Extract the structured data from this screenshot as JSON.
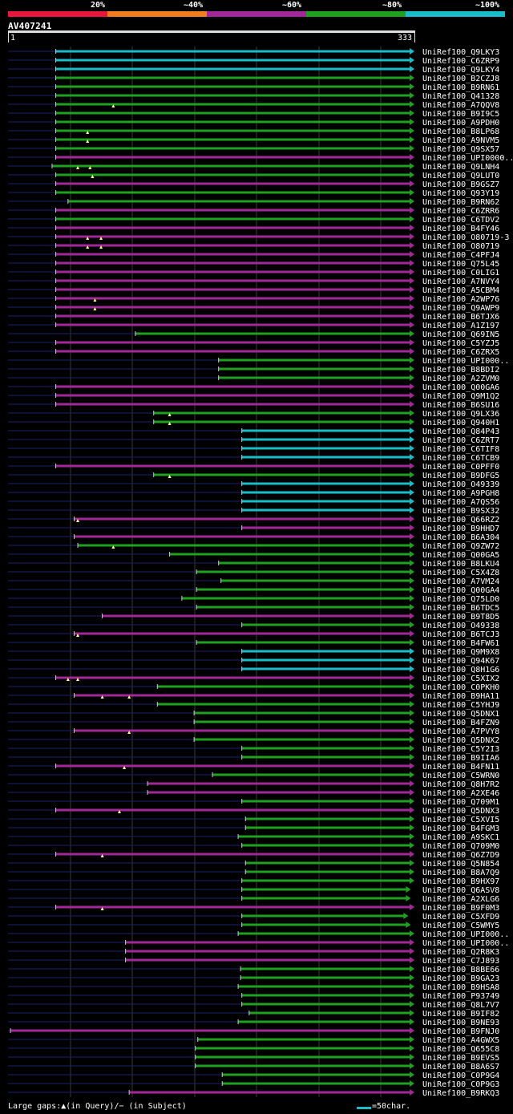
{
  "legend": {
    "colors": [
      "#e8183a",
      "#f07c1e",
      "#a2289a",
      "#1fa01f",
      "#19bcc9"
    ],
    "labels": [
      "20%",
      "~40%",
      "~60%",
      "~80%",
      "~100%"
    ]
  },
  "query": {
    "name": "AV407241",
    "start": "1",
    "end": "333"
  },
  "footer": {
    "gaps_text": "Large gaps:▲(in Query)/− (in Subject)",
    "scale_text": "=50char.",
    "scale_color": "#19bcc9"
  },
  "chart_data": {
    "type": "alignment",
    "query_length": 333,
    "colors": {
      "purple": "#a2289a",
      "green": "#1fa01f",
      "cyan": "#19bcc9",
      "dark": "#1a1f6e"
    },
    "hits": [
      {
        "name": "UniRef100_Q9LKY3",
        "start": 40,
        "color": "cyan"
      },
      {
        "name": "UniRef100_C6ZRP9",
        "start": 40,
        "color": "cyan"
      },
      {
        "name": "UniRef100_Q9LKY4",
        "start": 40,
        "color": "cyan"
      },
      {
        "name": "UniRef100_B2CZJ8",
        "start": 40,
        "color": "green"
      },
      {
        "name": "UniRef100_B9RN61",
        "start": 40,
        "color": "green"
      },
      {
        "name": "UniRef100_Q41328",
        "start": 40,
        "color": "green"
      },
      {
        "name": "UniRef100_A7QQV8",
        "start": 40,
        "color": "green",
        "gaps": [
          87
        ]
      },
      {
        "name": "UniRef100_B9I9C5",
        "start": 40,
        "color": "green"
      },
      {
        "name": "UniRef100_A9PDH0",
        "start": 40,
        "color": "green"
      },
      {
        "name": "UniRef100_B8LP68",
        "start": 40,
        "color": "green",
        "gaps": [
          66
        ]
      },
      {
        "name": "UniRef100_A9NVM5",
        "start": 40,
        "color": "green",
        "gaps": [
          66
        ]
      },
      {
        "name": "UniRef100_Q9SX57",
        "start": 40,
        "color": "green"
      },
      {
        "name": "UniRef100_UPI0000..",
        "start": 40,
        "color": "purple"
      },
      {
        "name": "UniRef100_Q9LNH4",
        "start": 37,
        "color": "green",
        "gaps": [
          58,
          68
        ]
      },
      {
        "name": "UniRef100_Q9LUT0",
        "start": 40,
        "color": "green",
        "gaps": [
          70
        ]
      },
      {
        "name": "UniRef100_B9GSZ7",
        "start": 40,
        "color": "purple"
      },
      {
        "name": "UniRef100_Q93Y19",
        "start": 40,
        "color": "green"
      },
      {
        "name": "UniRef100_B9RN62",
        "start": 50,
        "color": "green"
      },
      {
        "name": "UniRef100_C6ZRR6",
        "start": 40,
        "color": "purple"
      },
      {
        "name": "UniRef100_C6TDV2",
        "start": 40,
        "color": "green"
      },
      {
        "name": "UniRef100_B4FY46",
        "start": 40,
        "color": "purple"
      },
      {
        "name": "UniRef100_O80719-3",
        "start": 40,
        "color": "purple",
        "gaps": [
          66,
          77
        ]
      },
      {
        "name": "UniRef100_O80719",
        "start": 40,
        "color": "purple",
        "gaps": [
          66,
          77
        ]
      },
      {
        "name": "UniRef100_C4PFJ4",
        "start": 40,
        "color": "purple"
      },
      {
        "name": "UniRef100_Q75L45",
        "start": 40,
        "color": "purple"
      },
      {
        "name": "UniRef100_C0LIG1",
        "start": 40,
        "color": "purple"
      },
      {
        "name": "UniRef100_A7NVY4",
        "start": 40,
        "color": "purple"
      },
      {
        "name": "UniRef100_A5CBM4",
        "start": 40,
        "color": "purple"
      },
      {
        "name": "UniRef100_A2WP76",
        "start": 40,
        "color": "purple",
        "gaps": [
          72
        ]
      },
      {
        "name": "UniRef100_Q9AWP9",
        "start": 40,
        "color": "purple",
        "gaps": [
          72
        ]
      },
      {
        "name": "UniRef100_B6TJX6",
        "start": 40,
        "color": "purple"
      },
      {
        "name": "UniRef100_A1Z197",
        "start": 40,
        "color": "purple"
      },
      {
        "name": "UniRef100_Q69IN5",
        "start": 105,
        "color": "green"
      },
      {
        "name": "UniRef100_C5YZJ5",
        "start": 40,
        "color": "purple"
      },
      {
        "name": "UniRef100_C6ZRX5",
        "start": 40,
        "color": "purple"
      },
      {
        "name": "UniRef100_UPI000..",
        "start": 173,
        "color": "green"
      },
      {
        "name": "UniRef100_B8BDI2",
        "start": 173,
        "color": "green"
      },
      {
        "name": "UniRef100_A2ZVM0",
        "start": 173,
        "color": "green"
      },
      {
        "name": "UniRef100_Q00GA6",
        "start": 40,
        "color": "purple"
      },
      {
        "name": "UniRef100_Q9M1Q2",
        "start": 40,
        "color": "purple"
      },
      {
        "name": "UniRef100_B6SU16",
        "start": 40,
        "color": "purple"
      },
      {
        "name": "UniRef100_Q9LX36",
        "start": 120,
        "color": "green",
        "gaps": [
          133
        ]
      },
      {
        "name": "UniRef100_Q940H1",
        "start": 120,
        "color": "green",
        "gaps": [
          133
        ]
      },
      {
        "name": "UniRef100_Q84P43",
        "start": 192,
        "color": "cyan"
      },
      {
        "name": "UniRef100_C6ZRT7",
        "start": 192,
        "color": "cyan"
      },
      {
        "name": "UniRef100_C6TIF8",
        "start": 192,
        "color": "cyan"
      },
      {
        "name": "UniRef100_C6TCB9",
        "start": 192,
        "color": "cyan"
      },
      {
        "name": "UniRef100_C0PFF0",
        "start": 40,
        "color": "purple"
      },
      {
        "name": "UniRef100_B9DFG5",
        "start": 120,
        "color": "green",
        "gaps": [
          133
        ]
      },
      {
        "name": "UniRef100_O49339",
        "start": 192,
        "color": "cyan"
      },
      {
        "name": "UniRef100_A9PGH8",
        "start": 192,
        "color": "cyan"
      },
      {
        "name": "UniRef100_A7QS56",
        "start": 192,
        "color": "cyan"
      },
      {
        "name": "UniRef100_B9SX32",
        "start": 192,
        "color": "cyan"
      },
      {
        "name": "UniRef100_Q66RZ2",
        "start": 55,
        "color": "purple",
        "gaps": [
          58
        ]
      },
      {
        "name": "UniRef100_B9HHD7",
        "start": 192,
        "color": "purple"
      },
      {
        "name": "UniRef100_B6A304",
        "start": 55,
        "color": "purple"
      },
      {
        "name": "UniRef100_Q9ZW72",
        "start": 58,
        "color": "green",
        "gaps": [
          87
        ]
      },
      {
        "name": "UniRef100_Q00GA5",
        "start": 133,
        "color": "green"
      },
      {
        "name": "UniRef100_B8LKU4",
        "start": 173,
        "color": "green"
      },
      {
        "name": "UniRef100_C5X4Z8",
        "start": 155,
        "color": "green"
      },
      {
        "name": "UniRef100_A7VM24",
        "start": 175,
        "color": "green"
      },
      {
        "name": "UniRef100_Q00GA4",
        "start": 155,
        "color": "green"
      },
      {
        "name": "UniRef100_Q75LD0",
        "start": 143,
        "color": "green"
      },
      {
        "name": "UniRef100_B6TDC5",
        "start": 155,
        "color": "green"
      },
      {
        "name": "UniRef100_B9T8D5",
        "start": 78,
        "color": "purple"
      },
      {
        "name": "UniRef100_O49338",
        "start": 192,
        "color": "green"
      },
      {
        "name": "UniRef100_B6TCJ3",
        "start": 55,
        "color": "purple",
        "gaps": [
          58
        ]
      },
      {
        "name": "UniRef100_B4FW61",
        "start": 155,
        "color": "green"
      },
      {
        "name": "UniRef100_Q9M9X8",
        "start": 192,
        "color": "cyan"
      },
      {
        "name": "UniRef100_Q94K67",
        "start": 192,
        "color": "cyan"
      },
      {
        "name": "UniRef100_Q8H1G6",
        "start": 192,
        "color": "cyan"
      },
      {
        "name": "UniRef100_C5XIX2",
        "start": 40,
        "color": "purple",
        "gaps": [
          50,
          58
        ]
      },
      {
        "name": "UniRef100_C0PKH0",
        "start": 123,
        "color": "green"
      },
      {
        "name": "UniRef100_B9HA11",
        "start": 55,
        "color": "purple",
        "gaps": [
          78,
          100
        ]
      },
      {
        "name": "UniRef100_C5YHJ9",
        "start": 123,
        "color": "green"
      },
      {
        "name": "UniRef100_Q5DNX1",
        "start": 153,
        "color": "green"
      },
      {
        "name": "UniRef100_B4FZN9",
        "start": 153,
        "color": "green"
      },
      {
        "name": "UniRef100_A7PVY8",
        "start": 55,
        "color": "purple",
        "gaps": [
          100
        ]
      },
      {
        "name": "UniRef100_Q5DNX2",
        "start": 153,
        "color": "green"
      },
      {
        "name": "UniRef100_C5Y2I3",
        "start": 192,
        "color": "green"
      },
      {
        "name": "UniRef100_B9IIA6",
        "start": 192,
        "color": "green"
      },
      {
        "name": "UniRef100_B4FN11",
        "start": 40,
        "color": "purple",
        "gaps": [
          96
        ]
      },
      {
        "name": "UniRef100_C5WRN0",
        "start": 168,
        "color": "green"
      },
      {
        "name": "UniRef100_Q8H7R2",
        "start": 115,
        "color": "purple"
      },
      {
        "name": "UniRef100_A2XE46",
        "start": 115,
        "color": "purple"
      },
      {
        "name": "UniRef100_Q709M1",
        "start": 192,
        "color": "green"
      },
      {
        "name": "UniRef100_Q5DNX3",
        "start": 40,
        "color": "purple",
        "gaps": [
          92
        ]
      },
      {
        "name": "UniRef100_C5XVI5",
        "start": 195,
        "color": "green"
      },
      {
        "name": "UniRef100_B4FGM3",
        "start": 195,
        "color": "green"
      },
      {
        "name": "UniRef100_A9SKC1",
        "start": 189,
        "color": "green"
      },
      {
        "name": "UniRef100_Q709M0",
        "start": 192,
        "color": "green"
      },
      {
        "name": "UniRef100_Q6Z7D9",
        "start": 40,
        "color": "purple",
        "gaps": [
          78
        ]
      },
      {
        "name": "UniRef100_Q5N854",
        "start": 195,
        "color": "green"
      },
      {
        "name": "UniRef100_B8A7Q9",
        "start": 195,
        "color": "green"
      },
      {
        "name": "UniRef100_B9HX97",
        "start": 192,
        "color": "green"
      },
      {
        "name": "UniRef100_Q6ASV8",
        "start": 192,
        "end": 330,
        "color": "green"
      },
      {
        "name": "UniRef100_A2XLG6",
        "start": 192,
        "end": 330,
        "color": "green"
      },
      {
        "name": "UniRef100_B9F0M3",
        "start": 40,
        "color": "purple",
        "gaps": [
          78
        ]
      },
      {
        "name": "UniRef100_C5XFD9",
        "start": 192,
        "end": 328,
        "color": "green"
      },
      {
        "name": "UniRef100_C5WMY5",
        "start": 192,
        "end": 330,
        "color": "green"
      },
      {
        "name": "UniRef100_UPI000..",
        "start": 189,
        "color": "green"
      },
      {
        "name": "UniRef100_UPI000..",
        "start": 97,
        "color": "purple"
      },
      {
        "name": "UniRef100_Q2R8K3",
        "start": 97,
        "color": "purple"
      },
      {
        "name": "UniRef100_C7J893",
        "start": 97,
        "color": "purple"
      },
      {
        "name": "UniRef100_B8BE66",
        "start": 191,
        "color": "green"
      },
      {
        "name": "UniRef100_B9GA23",
        "start": 191,
        "color": "green"
      },
      {
        "name": "UniRef100_B9HSA8",
        "start": 189,
        "color": "green"
      },
      {
        "name": "UniRef100_P93749",
        "start": 192,
        "color": "green"
      },
      {
        "name": "UniRef100_Q8L7V7",
        "start": 192,
        "color": "green"
      },
      {
        "name": "UniRef100_B9IF82",
        "start": 198,
        "color": "green"
      },
      {
        "name": "UniRef100_B9NE93",
        "start": 189,
        "color": "green"
      },
      {
        "name": "UniRef100_B9FNJ0",
        "start": 3,
        "color": "purple"
      },
      {
        "name": "UniRef100_A4GWX5",
        "start": 156,
        "color": "green"
      },
      {
        "name": "UniRef100_Q655C8",
        "start": 154,
        "color": "green"
      },
      {
        "name": "UniRef100_B9EVS5",
        "start": 154,
        "color": "green"
      },
      {
        "name": "UniRef100_B8A6S7",
        "start": 154,
        "color": "green"
      },
      {
        "name": "UniRef100_C0P9G4",
        "start": 176,
        "color": "green"
      },
      {
        "name": "UniRef100_C0P9G3",
        "start": 176,
        "color": "green"
      },
      {
        "name": "UniRef100_B9RKQ3",
        "start": 100,
        "color": "purple"
      }
    ]
  }
}
